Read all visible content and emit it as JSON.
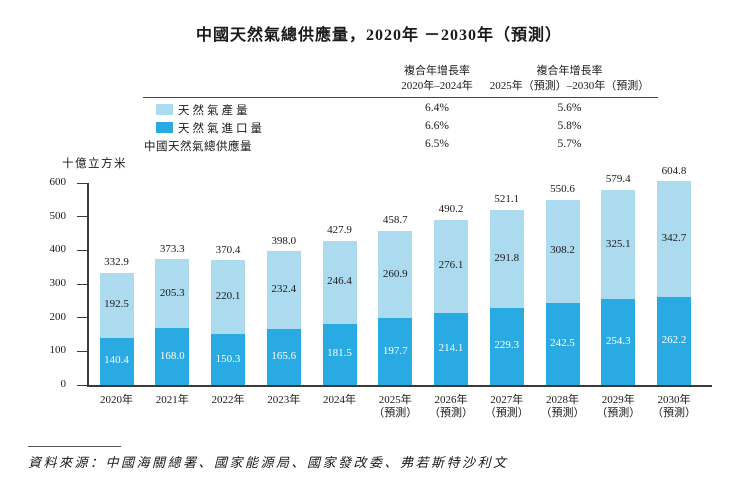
{
  "title": "中國天然氣總供應量，2020年 －2030年（預測）",
  "unit_label": "十億立方米",
  "source_note": "資料來源：中國海關總署、國家能源局、國家發改委、弗若斯特沙利文",
  "legend_table": {
    "columns": [
      {
        "line1": "複合年增長率",
        "line2": "2020年–2024年"
      },
      {
        "line1": "複合年增長率",
        "line2": "2025年（預測）–2030年（預測）"
      }
    ],
    "rows": [
      {
        "label": "天然氣產量",
        "swatch_color": "#ACDBEF",
        "cagr_2020_2024": "6.4%",
        "cagr_2025_2030": "5.6%"
      },
      {
        "label": "天然氣進口量",
        "swatch_color": "#29AAE2",
        "cagr_2020_2024": "6.6%",
        "cagr_2025_2030": "5.8%"
      },
      {
        "label": "中國天然氣總供應量",
        "swatch_color": "",
        "cagr_2020_2024": "6.5%",
        "cagr_2025_2030": "5.7%"
      }
    ]
  },
  "chart_data": {
    "type": "bar",
    "stacked": true,
    "title": "中國天然氣總供應量，2020年 －2030年（預測）",
    "ylabel": "十億立方米",
    "ylim": [
      0,
      600
    ],
    "yticks": [
      "0",
      "100",
      "200",
      "300",
      "400",
      "500",
      "600"
    ],
    "grid": false,
    "legend_position": "top-left",
    "categories": [
      "2020年",
      "2021年",
      "2022年",
      "2023年",
      "2024年",
      "2025年（預測）",
      "2026年（預測）",
      "2027年（預測）",
      "2028年（預測）",
      "2029年（預測）",
      "2030年（預測）"
    ],
    "x_labels": [
      {
        "line1": "2020年",
        "line2": ""
      },
      {
        "line1": "2021年",
        "line2": ""
      },
      {
        "line1": "2022年",
        "line2": ""
      },
      {
        "line1": "2023年",
        "line2": ""
      },
      {
        "line1": "2024年",
        "line2": ""
      },
      {
        "line1": "2025年",
        "line2": "（預測）"
      },
      {
        "line1": "2026年",
        "line2": "（預測）"
      },
      {
        "line1": "2027年",
        "line2": "（預測）"
      },
      {
        "line1": "2028年",
        "line2": "（預測）"
      },
      {
        "line1": "2029年",
        "line2": "（預測）"
      },
      {
        "line1": "2030年",
        "line2": "（預測）"
      }
    ],
    "series": [
      {
        "name": "天然氣進口量",
        "color": "#29AAE2",
        "label_color": "#ffffff",
        "values": [
          140.4,
          168.0,
          150.3,
          165.6,
          181.5,
          197.7,
          214.1,
          229.3,
          242.5,
          254.3,
          262.2
        ],
        "value_labels": [
          "140.4",
          "168.0",
          "150.3",
          "165.6",
          "181.5",
          "197.7",
          "214.1",
          "229.3",
          "242.5",
          "254.3",
          "262.2"
        ]
      },
      {
        "name": "天然氣產量",
        "color": "#ACDBEF",
        "label_color": "#1a1a1a",
        "values": [
          192.5,
          205.3,
          220.1,
          232.4,
          246.4,
          260.9,
          276.1,
          291.8,
          308.2,
          325.1,
          342.7
        ],
        "value_labels": [
          "192.5",
          "205.3",
          "220.1",
          "232.4",
          "246.4",
          "260.9",
          "276.1",
          "291.8",
          "308.2",
          "325.1",
          "342.7"
        ]
      }
    ],
    "totals": [
      "332.9",
      "373.3",
      "370.4",
      "398.0",
      "427.9",
      "458.7",
      "490.2",
      "521.1",
      "550.6",
      "579.4",
      "604.8"
    ]
  }
}
